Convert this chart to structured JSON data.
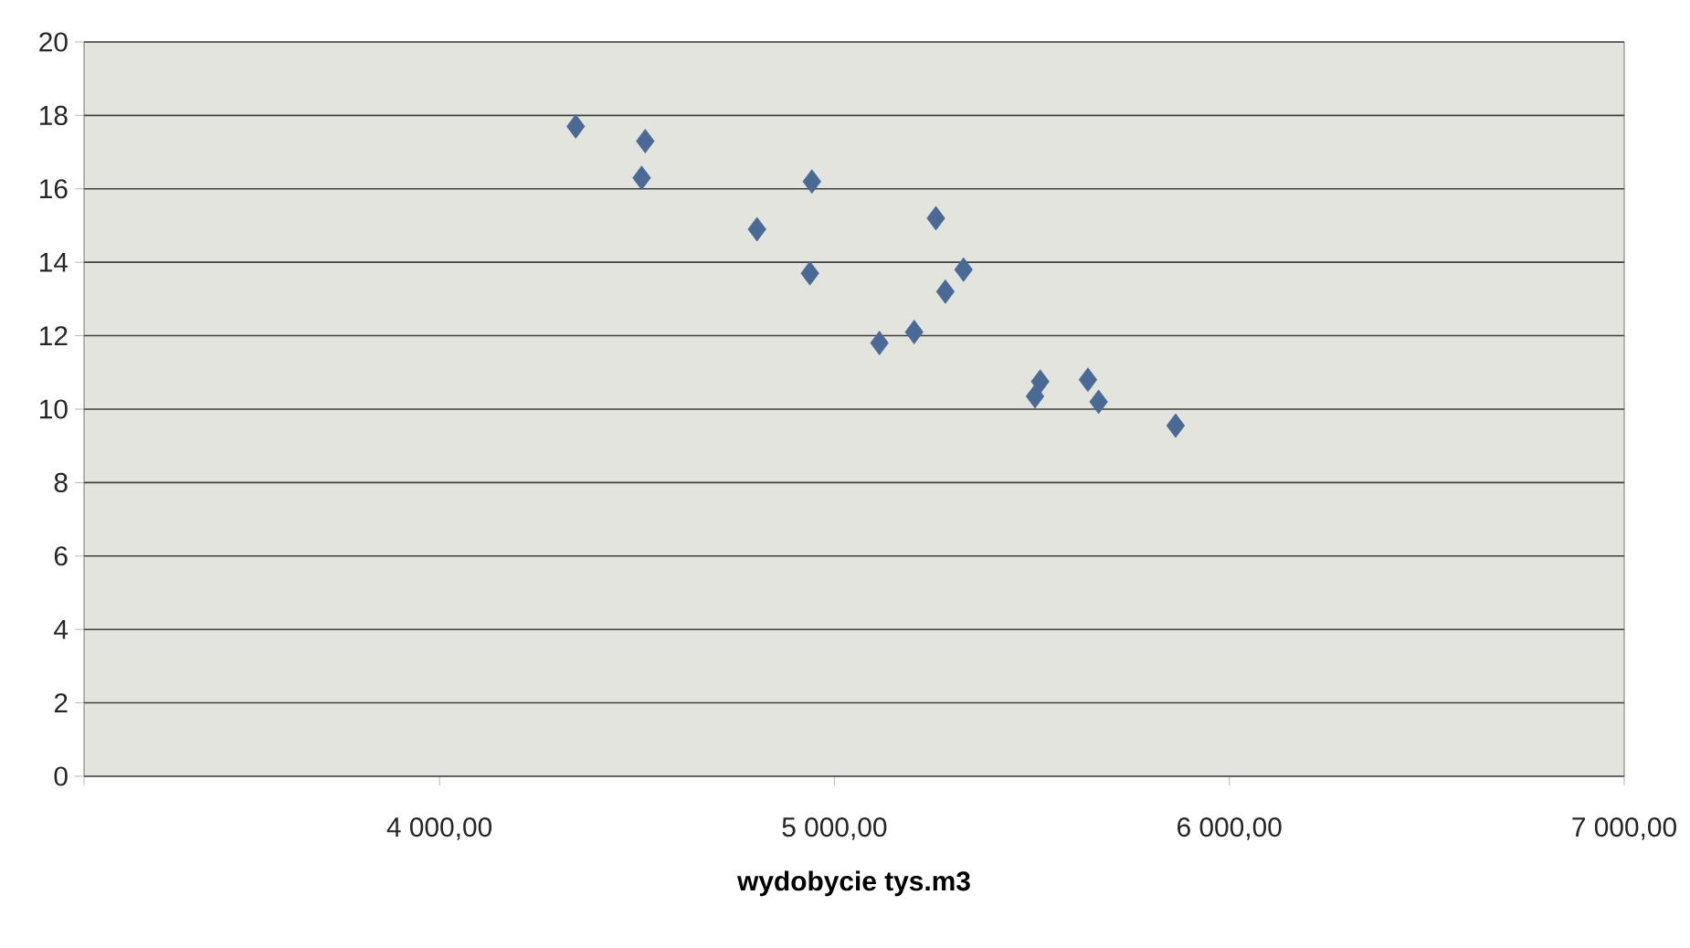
{
  "chart_data": {
    "type": "scatter",
    "xlabel": "wydobycie tys.m3",
    "x": [
      4345,
      4521,
      4512,
      4804,
      4943,
      4938,
      5257,
      5327,
      5281,
      5114,
      5202,
      5521,
      5508,
      5642,
      5669,
      5864
    ],
    "values": [
      17.7,
      17.3,
      16.3,
      14.9,
      16.2,
      13.7,
      15.2,
      13.8,
      13.2,
      11.8,
      12.1,
      10.75,
      10.35,
      10.8,
      10.2,
      9.55
    ],
    "color": "#4a6a96",
    "marker": "diamond",
    "grid": "y",
    "xlim": [
      3100,
      7000
    ],
    "xticks": [
      {
        "value": 3100,
        "label": null
      },
      {
        "value": 4000,
        "label": "4 000,00"
      },
      {
        "value": 5000,
        "label": "5 000,00"
      },
      {
        "value": 6000,
        "label": "6 000,00"
      },
      {
        "value": 7000,
        "label": "7 000,00"
      }
    ],
    "ylim": [
      0,
      20
    ],
    "yticks": [
      0,
      2,
      4,
      6,
      8,
      10,
      12,
      14,
      16,
      18,
      20
    ]
  }
}
